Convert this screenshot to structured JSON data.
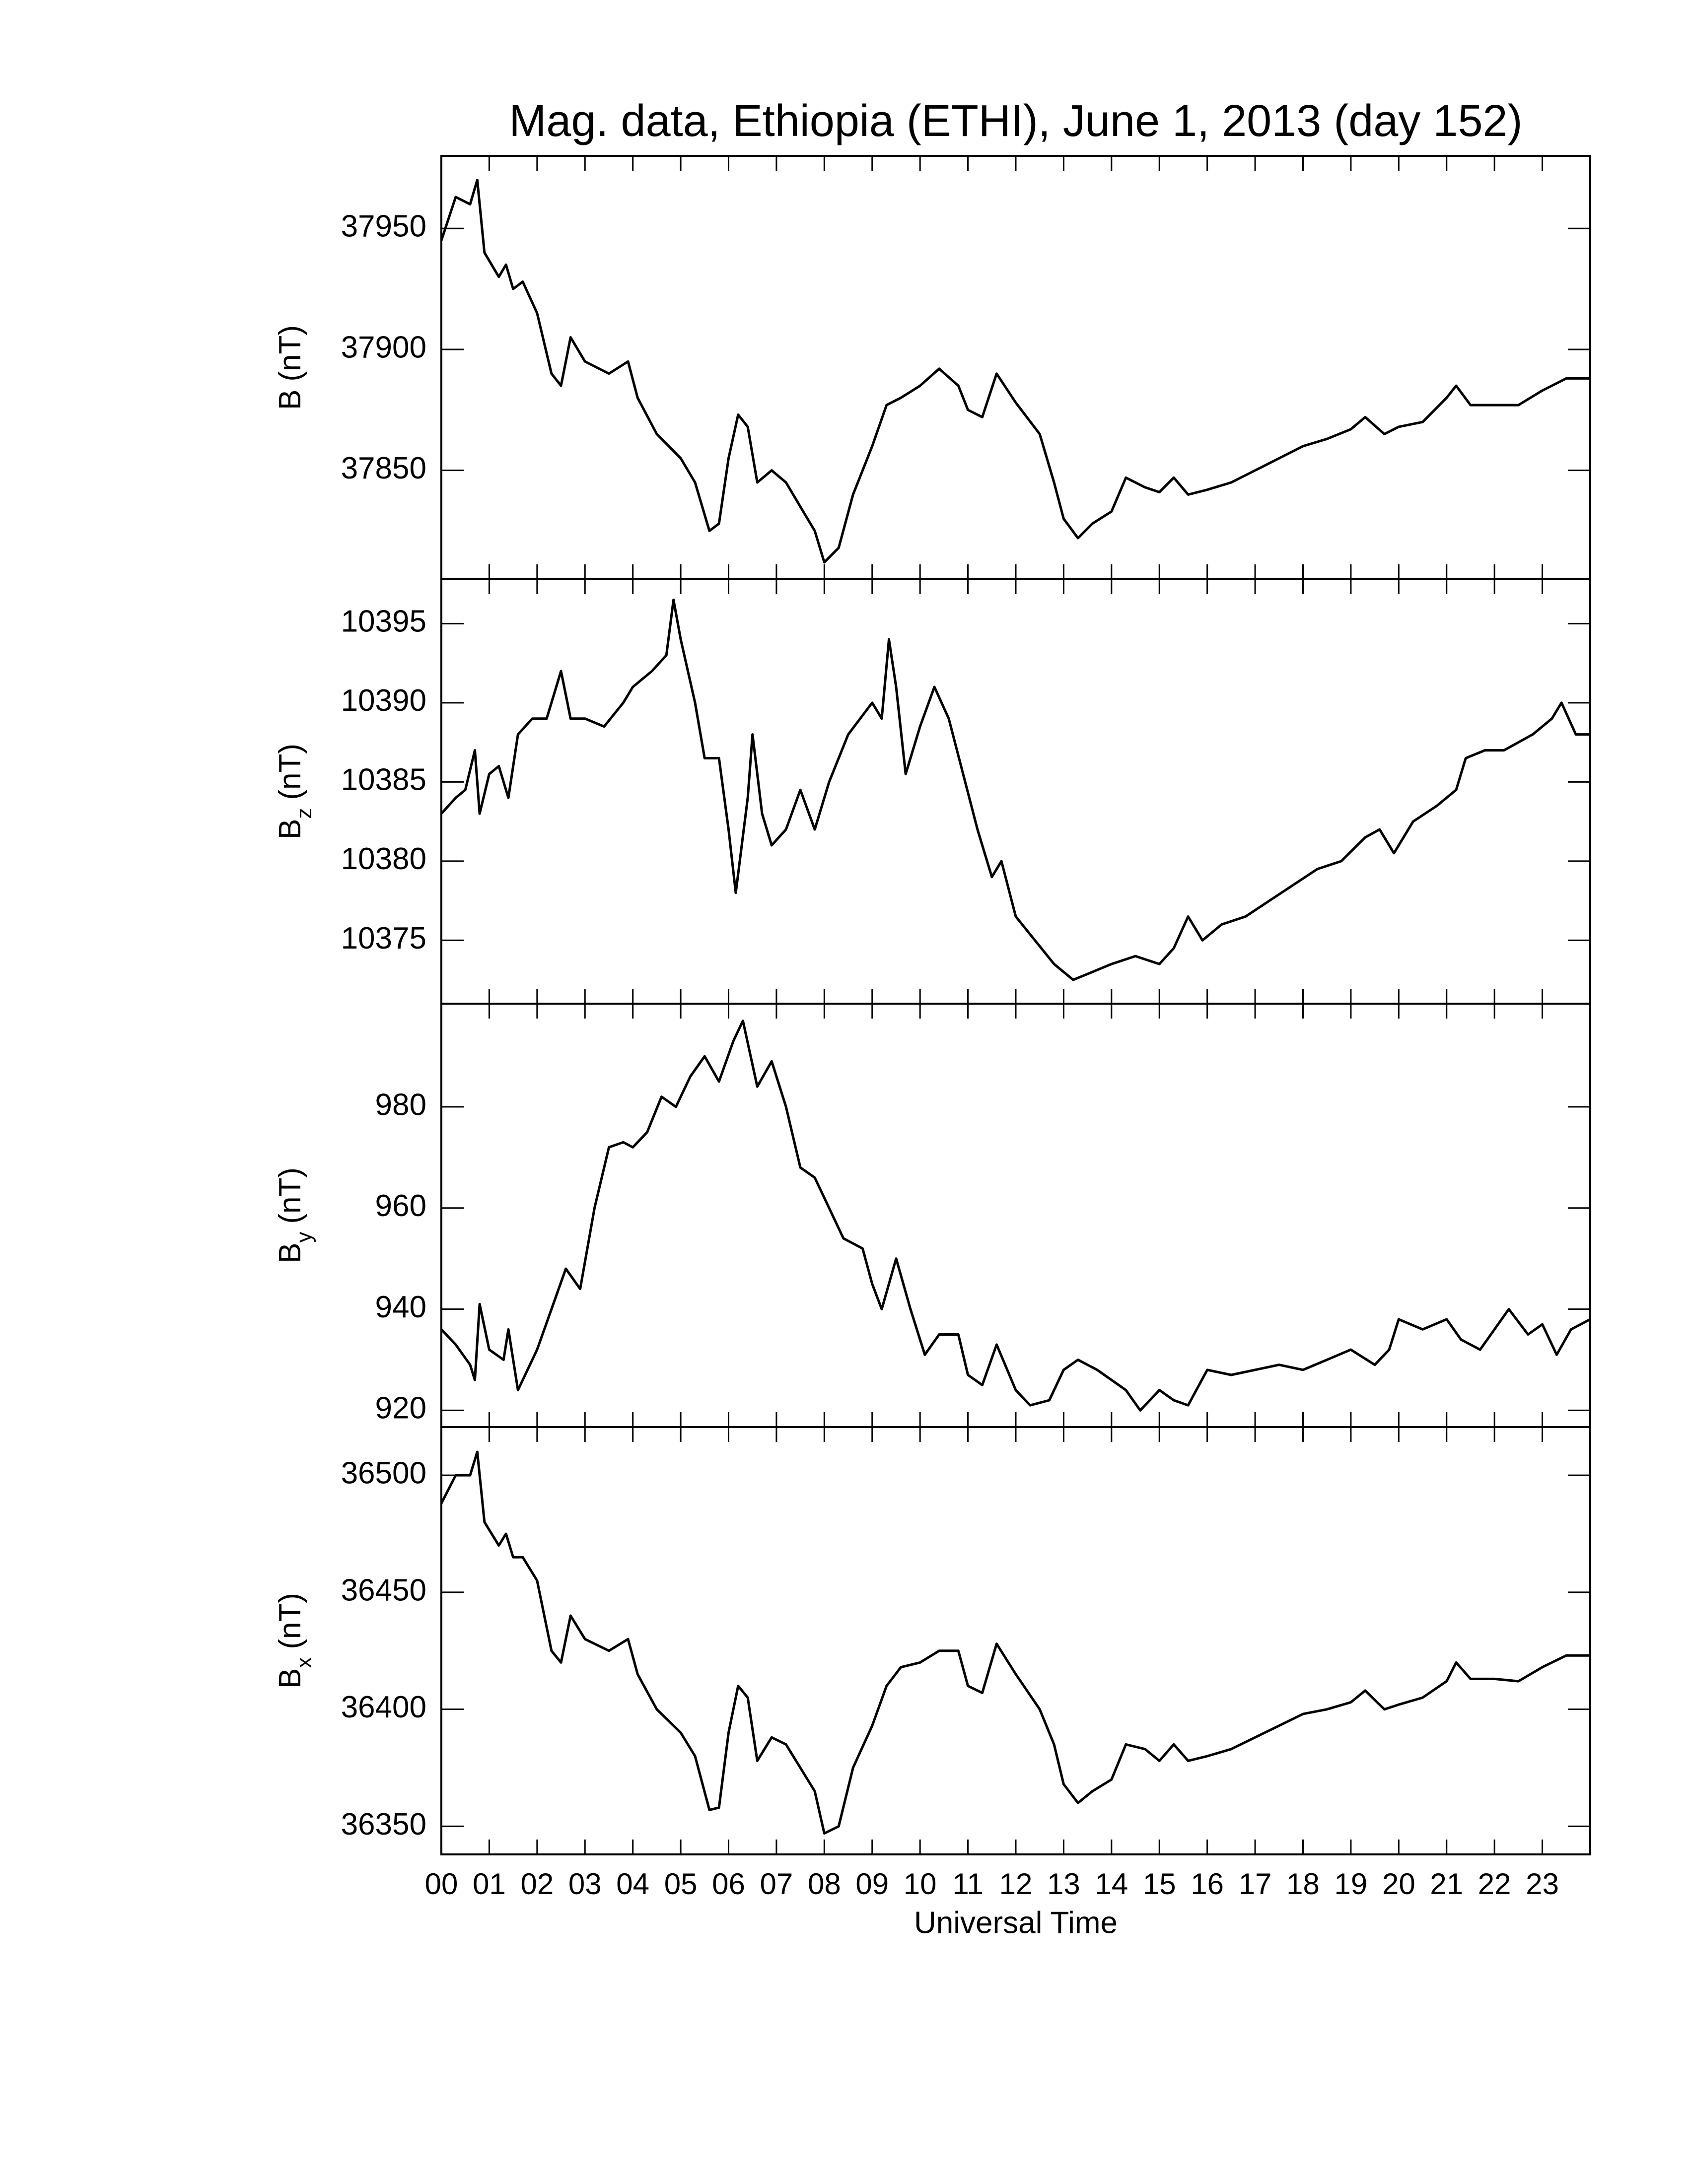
{
  "chart_data": [
    {
      "type": "line",
      "title": "Mag. data, Ethiopia (ETHI), June 1, 2013 (day 152)",
      "ylabel": "B",
      "ylabel_unit": "(nT)",
      "color": "#000000",
      "xlim": [
        0,
        24
      ],
      "xticks": [
        {
          "value": 0,
          "label": "00"
        },
        {
          "value": 1,
          "label": "01"
        },
        {
          "value": 2,
          "label": "02"
        },
        {
          "value": 3,
          "label": "03"
        },
        {
          "value": 4,
          "label": "04"
        },
        {
          "value": 5,
          "label": "05"
        },
        {
          "value": 6,
          "label": "06"
        },
        {
          "value": 7,
          "label": "07"
        },
        {
          "value": 8,
          "label": "08"
        },
        {
          "value": 9,
          "label": "09"
        },
        {
          "value": 10,
          "label": "10"
        },
        {
          "value": 11,
          "label": "11"
        },
        {
          "value": 12,
          "label": "12"
        },
        {
          "value": 13,
          "label": "13"
        },
        {
          "value": 14,
          "label": "14"
        },
        {
          "value": 15,
          "label": "15"
        },
        {
          "value": 16,
          "label": "16"
        },
        {
          "value": 17,
          "label": "17"
        },
        {
          "value": 18,
          "label": "18"
        },
        {
          "value": 19,
          "label": "19"
        },
        {
          "value": 20,
          "label": "20"
        },
        {
          "value": 21,
          "label": "21"
        },
        {
          "value": 22,
          "label": "22"
        },
        {
          "value": 23,
          "label": "23"
        }
      ],
      "ylim": [
        37805,
        37980
      ],
      "yticks": [
        37850,
        37900,
        37950
      ],
      "x": [
        0,
        0.3,
        0.6,
        0.75,
        0.9,
        1.2,
        1.35,
        1.5,
        1.7,
        2.0,
        2.3,
        2.5,
        2.7,
        3.0,
        3.5,
        3.9,
        4.1,
        4.5,
        5.0,
        5.3,
        5.6,
        5.8,
        6.0,
        6.2,
        6.4,
        6.6,
        6.9,
        7.2,
        7.5,
        7.8,
        8.0,
        8.3,
        8.6,
        9.0,
        9.3,
        9.6,
        10.0,
        10.4,
        10.8,
        11.0,
        11.3,
        11.6,
        12.0,
        12.5,
        12.8,
        13.0,
        13.3,
        13.6,
        14.0,
        14.3,
        14.7,
        15.0,
        15.3,
        15.6,
        16.0,
        16.5,
        17.0,
        17.5,
        18.0,
        18.5,
        19.0,
        19.3,
        19.7,
        20.0,
        20.5,
        21.0,
        21.2,
        21.5,
        22.0,
        22.5,
        23.0,
        23.5,
        24.0
      ],
      "values": [
        37945,
        37963,
        37960,
        37970,
        37940,
        37930,
        37935,
        37925,
        37928,
        37915,
        37890,
        37885,
        37905,
        37895,
        37890,
        37895,
        37880,
        37865,
        37855,
        37845,
        37825,
        37828,
        37855,
        37873,
        37868,
        37845,
        37850,
        37845,
        37835,
        37825,
        37812,
        37818,
        37840,
        37860,
        37877,
        37880,
        37885,
        37892,
        37885,
        37875,
        37872,
        37890,
        37878,
        37865,
        37845,
        37830,
        37822,
        37828,
        37833,
        37847,
        37843,
        37841,
        37847,
        37840,
        37842,
        37845,
        37850,
        37855,
        37860,
        37863,
        37867,
        37872,
        37865,
        37868,
        37870,
        37880,
        37885,
        37877,
        37877,
        37877,
        37883,
        37888,
        37888
      ]
    },
    {
      "type": "line",
      "ylabel": "B",
      "ylabel_sub": "z",
      "ylabel_unit": "(nT)",
      "color": "#000000",
      "xlim": [
        0,
        24
      ],
      "xticks": [
        {
          "value": 0,
          "label": "00"
        },
        {
          "value": 1,
          "label": "01"
        },
        {
          "value": 2,
          "label": "02"
        },
        {
          "value": 3,
          "label": "03"
        },
        {
          "value": 4,
          "label": "04"
        },
        {
          "value": 5,
          "label": "05"
        },
        {
          "value": 6,
          "label": "06"
        },
        {
          "value": 7,
          "label": "07"
        },
        {
          "value": 8,
          "label": "08"
        },
        {
          "value": 9,
          "label": "09"
        },
        {
          "value": 10,
          "label": "10"
        },
        {
          "value": 11,
          "label": "11"
        },
        {
          "value": 12,
          "label": "12"
        },
        {
          "value": 13,
          "label": "13"
        },
        {
          "value": 14,
          "label": "14"
        },
        {
          "value": 15,
          "label": "15"
        },
        {
          "value": 16,
          "label": "16"
        },
        {
          "value": 17,
          "label": "17"
        },
        {
          "value": 18,
          "label": "18"
        },
        {
          "value": 19,
          "label": "19"
        },
        {
          "value": 20,
          "label": "20"
        },
        {
          "value": 21,
          "label": "21"
        },
        {
          "value": 22,
          "label": "22"
        },
        {
          "value": 23,
          "label": "23"
        }
      ],
      "ylim": [
        10371,
        10397.8
      ],
      "yticks": [
        10375,
        10380,
        10385,
        10390,
        10395
      ],
      "x": [
        0,
        0.3,
        0.5,
        0.7,
        0.8,
        1.0,
        1.2,
        1.4,
        1.6,
        1.9,
        2.2,
        2.5,
        2.7,
        3.0,
        3.4,
        3.8,
        4.0,
        4.4,
        4.7,
        4.85,
        5.0,
        5.3,
        5.5,
        5.8,
        6.0,
        6.15,
        6.4,
        6.5,
        6.7,
        6.9,
        7.2,
        7.5,
        7.8,
        8.1,
        8.5,
        9.0,
        9.2,
        9.35,
        9.5,
        9.7,
        10.0,
        10.3,
        10.6,
        10.9,
        11.2,
        11.5,
        11.7,
        12.0,
        12.4,
        12.8,
        13.2,
        13.6,
        14.0,
        14.5,
        15.0,
        15.3,
        15.6,
        15.9,
        16.3,
        16.8,
        17.3,
        17.8,
        18.3,
        18.8,
        19.3,
        19.6,
        19.9,
        20.3,
        20.8,
        21.2,
        21.4,
        21.8,
        22.2,
        22.5,
        22.8,
        23.2,
        23.4,
        23.7,
        24.0
      ],
      "values": [
        10383,
        10384,
        10384.5,
        10387,
        10383,
        10385.5,
        10386,
        10384,
        10388,
        10389,
        10389,
        10392,
        10389,
        10389,
        10388.5,
        10390,
        10391,
        10392,
        10393,
        10396.5,
        10394,
        10390,
        10386.5,
        10386.5,
        10382,
        10378,
        10384,
        10388,
        10383,
        10381,
        10382,
        10384.5,
        10382,
        10385,
        10388,
        10390,
        10389,
        10394,
        10391,
        10385.5,
        10388.5,
        10391,
        10389,
        10385.5,
        10382,
        10379,
        10380,
        10376.5,
        10375,
        10373.5,
        10372.5,
        10373,
        10373.5,
        10374,
        10373.5,
        10374.5,
        10376.5,
        10375,
        10376,
        10376.5,
        10377.5,
        10378.5,
        10379.5,
        10380,
        10381.5,
        10382,
        10380.5,
        10382.5,
        10383.5,
        10384.5,
        10386.5,
        10387,
        10387,
        10387.5,
        10388,
        10389,
        10390,
        10388,
        10388
      ]
    },
    {
      "type": "line",
      "ylabel": "B",
      "ylabel_sub": "y",
      "ylabel_unit": "(nT)",
      "color": "#000000",
      "xlim": [
        0,
        24
      ],
      "xticks": [
        {
          "value": 0,
          "label": "00"
        },
        {
          "value": 1,
          "label": "01"
        },
        {
          "value": 2,
          "label": "02"
        },
        {
          "value": 3,
          "label": "03"
        },
        {
          "value": 4,
          "label": "04"
        },
        {
          "value": 5,
          "label": "05"
        },
        {
          "value": 6,
          "label": "06"
        },
        {
          "value": 7,
          "label": "07"
        },
        {
          "value": 8,
          "label": "08"
        },
        {
          "value": 9,
          "label": "09"
        },
        {
          "value": 10,
          "label": "10"
        },
        {
          "value": 11,
          "label": "11"
        },
        {
          "value": 12,
          "label": "12"
        },
        {
          "value": 13,
          "label": "13"
        },
        {
          "value": 14,
          "label": "14"
        },
        {
          "value": 15,
          "label": "15"
        },
        {
          "value": 16,
          "label": "16"
        },
        {
          "value": 17,
          "label": "17"
        },
        {
          "value": 18,
          "label": "18"
        },
        {
          "value": 19,
          "label": "19"
        },
        {
          "value": 20,
          "label": "20"
        },
        {
          "value": 21,
          "label": "21"
        },
        {
          "value": 22,
          "label": "22"
        },
        {
          "value": 23,
          "label": "23"
        }
      ],
      "ylim": [
        916.7,
        1000.4
      ],
      "yticks": [
        920,
        940,
        960,
        980
      ],
      "x": [
        0,
        0.3,
        0.6,
        0.7,
        0.8,
        1.0,
        1.3,
        1.4,
        1.6,
        2.0,
        2.3,
        2.6,
        2.9,
        3.2,
        3.5,
        3.8,
        4.0,
        4.3,
        4.6,
        4.9,
        5.2,
        5.5,
        5.8,
        6.1,
        6.3,
        6.6,
        6.9,
        7.2,
        7.5,
        7.8,
        8.1,
        8.4,
        8.8,
        9.0,
        9.2,
        9.5,
        9.8,
        10.1,
        10.4,
        10.8,
        11.0,
        11.3,
        11.6,
        12.0,
        12.3,
        12.7,
        13.0,
        13.3,
        13.7,
        14.0,
        14.3,
        14.6,
        15.0,
        15.3,
        15.6,
        16.0,
        16.5,
        17.0,
        17.5,
        18.0,
        18.5,
        19.0,
        19.5,
        19.8,
        20.0,
        20.5,
        21.0,
        21.3,
        21.7,
        22.0,
        22.3,
        22.7,
        23.0,
        23.3,
        23.6,
        24.0
      ],
      "values": [
        936,
        933,
        929,
        926,
        941,
        932,
        930,
        936,
        924,
        932,
        940,
        948,
        944,
        960,
        972,
        973,
        972,
        975,
        982,
        980,
        986,
        990,
        985,
        993,
        997,
        984,
        989,
        980,
        968,
        966,
        960,
        954,
        952,
        945,
        940,
        950,
        940,
        931,
        935,
        935,
        927,
        925,
        933,
        924,
        921,
        922,
        928,
        930,
        928,
        926,
        924,
        920,
        924,
        922,
        921,
        928,
        927,
        928,
        929,
        928,
        930,
        932,
        929,
        932,
        938,
        936,
        938,
        934,
        932,
        936,
        940,
        935,
        937,
        931,
        936,
        938
      ]
    },
    {
      "type": "line",
      "ylabel": "B",
      "ylabel_sub": "x",
      "ylabel_unit": "(nT)",
      "xlabel": "Universal Time",
      "color": "#000000",
      "xlim": [
        0,
        24
      ],
      "xticks": [
        {
          "value": 0,
          "label": "00"
        },
        {
          "value": 1,
          "label": "01"
        },
        {
          "value": 2,
          "label": "02"
        },
        {
          "value": 3,
          "label": "03"
        },
        {
          "value": 4,
          "label": "04"
        },
        {
          "value": 5,
          "label": "05"
        },
        {
          "value": 6,
          "label": "06"
        },
        {
          "value": 7,
          "label": "07"
        },
        {
          "value": 8,
          "label": "08"
        },
        {
          "value": 9,
          "label": "09"
        },
        {
          "value": 10,
          "label": "10"
        },
        {
          "value": 11,
          "label": "11"
        },
        {
          "value": 12,
          "label": "12"
        },
        {
          "value": 13,
          "label": "13"
        },
        {
          "value": 14,
          "label": "14"
        },
        {
          "value": 15,
          "label": "15"
        },
        {
          "value": 16,
          "label": "16"
        },
        {
          "value": 17,
          "label": "17"
        },
        {
          "value": 18,
          "label": "18"
        },
        {
          "value": 19,
          "label": "19"
        },
        {
          "value": 20,
          "label": "20"
        },
        {
          "value": 21,
          "label": "21"
        },
        {
          "value": 22,
          "label": "22"
        },
        {
          "value": 23,
          "label": "23"
        }
      ],
      "ylim": [
        36338,
        36520.6
      ],
      "yticks": [
        36350,
        36400,
        36450,
        36500
      ],
      "x": [
        0,
        0.3,
        0.6,
        0.75,
        0.9,
        1.2,
        1.35,
        1.5,
        1.7,
        2.0,
        2.3,
        2.5,
        2.7,
        3.0,
        3.5,
        3.9,
        4.1,
        4.5,
        5.0,
        5.3,
        5.6,
        5.8,
        6.0,
        6.2,
        6.4,
        6.6,
        6.9,
        7.2,
        7.5,
        7.8,
        8.0,
        8.3,
        8.6,
        9.0,
        9.3,
        9.6,
        10.0,
        10.4,
        10.8,
        11.0,
        11.3,
        11.6,
        12.0,
        12.5,
        12.8,
        13.0,
        13.3,
        13.6,
        14.0,
        14.3,
        14.7,
        15.0,
        15.3,
        15.6,
        16.0,
        16.5,
        17.0,
        17.5,
        18.0,
        18.5,
        19.0,
        19.3,
        19.7,
        20.0,
        20.5,
        21.0,
        21.2,
        21.5,
        22.0,
        22.5,
        23.0,
        23.5,
        24.0
      ],
      "values": [
        36488,
        36500,
        36500,
        36510,
        36480,
        36470,
        36475,
        36465,
        36465,
        36455,
        36425,
        36420,
        36440,
        36430,
        36425,
        36430,
        36415,
        36400,
        36390,
        36380,
        36357,
        36358,
        36390,
        36410,
        36405,
        36378,
        36388,
        36385,
        36375,
        36365,
        36347,
        36350,
        36375,
        36393,
        36410,
        36418,
        36420,
        36425,
        36425,
        36410,
        36407,
        36428,
        36415,
        36400,
        36385,
        36368,
        36360,
        36365,
        36370,
        36385,
        36383,
        36378,
        36385,
        36378,
        36380,
        36383,
        36388,
        36393,
        36398,
        36400,
        36403,
        36408,
        36400,
        36402,
        36405,
        36412,
        36420,
        36413,
        36413,
        36412,
        36418,
        36423,
        36423
      ]
    }
  ]
}
